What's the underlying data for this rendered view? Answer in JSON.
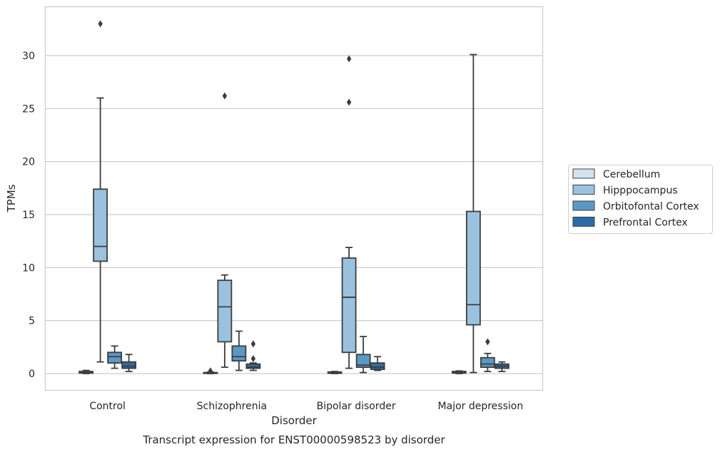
{
  "chart_data": {
    "type": "box",
    "caption": "Transcript expression for ENST00000598523 by disorder",
    "xlabel": "Disorder",
    "ylabel": "TPMs",
    "categories": [
      "Control",
      "Schizophrenia",
      "Bipolar disorder",
      "Major depression"
    ],
    "ylim": [
      -1.6,
      34.5
    ],
    "yticks": [
      0,
      5,
      10,
      15,
      20,
      25,
      30
    ],
    "grid": "horizontal",
    "legend_position": "right",
    "series": [
      {
        "name": "Cerebellum",
        "color": "#d3e2ef",
        "boxes": [
          {
            "whisker_low": 0.0,
            "q1": 0.05,
            "median": 0.1,
            "q3": 0.2,
            "whisker_high": 0.3,
            "outliers": []
          },
          {
            "whisker_low": 0.0,
            "q1": 0.02,
            "median": 0.05,
            "q3": 0.1,
            "whisker_high": 0.15,
            "outliers": [
              0.25
            ]
          },
          {
            "whisker_low": 0.0,
            "q1": 0.03,
            "median": 0.08,
            "q3": 0.15,
            "whisker_high": 0.2,
            "outliers": []
          },
          {
            "whisker_low": 0.0,
            "q1": 0.05,
            "median": 0.1,
            "q3": 0.2,
            "whisker_high": 0.25,
            "outliers": []
          }
        ]
      },
      {
        "name": "Hipppocampus",
        "color": "#9ac2df",
        "boxes": [
          {
            "whisker_low": 1.1,
            "q1": 10.6,
            "median": 12.0,
            "q3": 17.4,
            "whisker_high": 26.0,
            "outliers": [
              33.0
            ]
          },
          {
            "whisker_low": 0.6,
            "q1": 3.0,
            "median": 6.3,
            "q3": 8.8,
            "whisker_high": 9.3,
            "outliers": [
              26.2
            ]
          },
          {
            "whisker_low": 0.5,
            "q1": 2.0,
            "median": 7.2,
            "q3": 10.9,
            "whisker_high": 11.9,
            "outliers": [
              25.6,
              29.7
            ]
          },
          {
            "whisker_low": 0.1,
            "q1": 4.6,
            "median": 6.5,
            "q3": 15.3,
            "whisker_high": 30.1,
            "outliers": []
          }
        ]
      },
      {
        "name": "Orbitofontal Cortex",
        "color": "#5b98c6",
        "boxes": [
          {
            "whisker_low": 0.5,
            "q1": 1.0,
            "median": 1.6,
            "q3": 2.0,
            "whisker_high": 2.6,
            "outliers": []
          },
          {
            "whisker_low": 0.3,
            "q1": 1.2,
            "median": 1.6,
            "q3": 2.6,
            "whisker_high": 4.0,
            "outliers": []
          },
          {
            "whisker_low": 0.1,
            "q1": 0.6,
            "median": 0.8,
            "q3": 1.8,
            "whisker_high": 3.5,
            "outliers": []
          },
          {
            "whisker_low": 0.2,
            "q1": 0.6,
            "median": 0.9,
            "q3": 1.5,
            "whisker_high": 1.9,
            "outliers": [
              3.0
            ]
          }
        ]
      },
      {
        "name": "Prefrontal Cortex",
        "color": "#2d6ba6",
        "boxes": [
          {
            "whisker_low": 0.2,
            "q1": 0.5,
            "median": 0.7,
            "q3": 1.1,
            "whisker_high": 1.8,
            "outliers": []
          },
          {
            "whisker_low": 0.3,
            "q1": 0.5,
            "median": 0.6,
            "q3": 0.9,
            "whisker_high": 1.0,
            "outliers": [
              1.4,
              2.8
            ]
          },
          {
            "whisker_low": 0.3,
            "q1": 0.4,
            "median": 0.6,
            "q3": 1.0,
            "whisker_high": 1.6,
            "outliers": []
          },
          {
            "whisker_low": 0.2,
            "q1": 0.5,
            "median": 0.7,
            "q3": 0.9,
            "whisker_high": 1.1,
            "outliers": []
          }
        ]
      }
    ]
  }
}
